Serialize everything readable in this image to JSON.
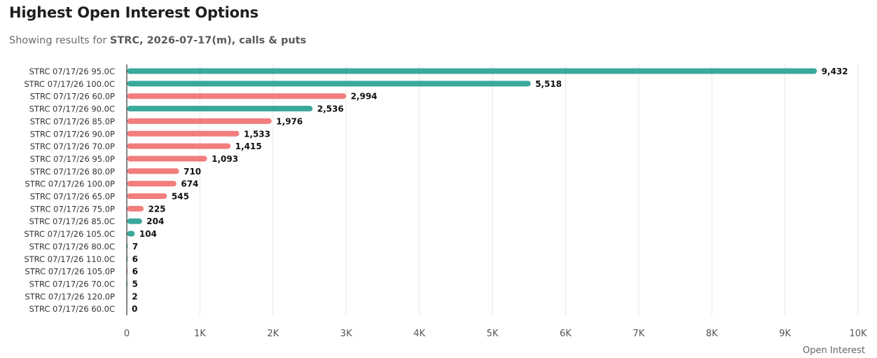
{
  "header": {
    "title": "Highest Open Interest Options",
    "subtitle_prefix": "Showing results for ",
    "subtitle_bold": "STRC, 2026-07-17(m), calls & puts"
  },
  "colors": {
    "call": "#3aa89b",
    "put": "#f27d7d",
    "grid": "#e6e6e6",
    "axis": "#333333"
  },
  "chart_data": {
    "type": "bar",
    "orientation": "horizontal",
    "title": "Highest Open Interest Options",
    "xlabel": "Open Interest",
    "xlim": [
      0,
      10000
    ],
    "xticks": [
      {
        "v": 0,
        "label": "0"
      },
      {
        "v": 1000,
        "label": "1K"
      },
      {
        "v": 2000,
        "label": "2K"
      },
      {
        "v": 3000,
        "label": "3K"
      },
      {
        "v": 4000,
        "label": "4K"
      },
      {
        "v": 5000,
        "label": "5K"
      },
      {
        "v": 6000,
        "label": "6K"
      },
      {
        "v": 7000,
        "label": "7K"
      },
      {
        "v": 8000,
        "label": "8K"
      },
      {
        "v": 9000,
        "label": "9K"
      },
      {
        "v": 10000,
        "label": "10K"
      }
    ],
    "grid": true,
    "bars": [
      {
        "label": "STRC 07/17/26 95.0C",
        "value": 9432,
        "display": "9,432",
        "kind": "call"
      },
      {
        "label": "STRC 07/17/26 100.0C",
        "value": 5518,
        "display": "5,518",
        "kind": "call"
      },
      {
        "label": "STRC 07/17/26 60.0P",
        "value": 2994,
        "display": "2,994",
        "kind": "put"
      },
      {
        "label": "STRC 07/17/26 90.0C",
        "value": 2536,
        "display": "2,536",
        "kind": "call"
      },
      {
        "label": "STRC 07/17/26 85.0P",
        "value": 1976,
        "display": "1,976",
        "kind": "put"
      },
      {
        "label": "STRC 07/17/26 90.0P",
        "value": 1533,
        "display": "1,533",
        "kind": "put"
      },
      {
        "label": "STRC 07/17/26 70.0P",
        "value": 1415,
        "display": "1,415",
        "kind": "put"
      },
      {
        "label": "STRC 07/17/26 95.0P",
        "value": 1093,
        "display": "1,093",
        "kind": "put"
      },
      {
        "label": "STRC 07/17/26 80.0P",
        "value": 710,
        "display": "710",
        "kind": "put"
      },
      {
        "label": "STRC 07/17/26 100.0P",
        "value": 674,
        "display": "674",
        "kind": "put"
      },
      {
        "label": "STRC 07/17/26 65.0P",
        "value": 545,
        "display": "545",
        "kind": "put"
      },
      {
        "label": "STRC 07/17/26 75.0P",
        "value": 225,
        "display": "225",
        "kind": "put"
      },
      {
        "label": "STRC 07/17/26 85.0C",
        "value": 204,
        "display": "204",
        "kind": "call"
      },
      {
        "label": "STRC 07/17/26 105.0C",
        "value": 104,
        "display": "104",
        "kind": "call"
      },
      {
        "label": "STRC 07/17/26 80.0C",
        "value": 7,
        "display": "7",
        "kind": "call"
      },
      {
        "label": "STRC 07/17/26 110.0C",
        "value": 6,
        "display": "6",
        "kind": "call"
      },
      {
        "label": "STRC 07/17/26 105.0P",
        "value": 6,
        "display": "6",
        "kind": "put"
      },
      {
        "label": "STRC 07/17/26 70.0C",
        "value": 5,
        "display": "5",
        "kind": "call"
      },
      {
        "label": "STRC 07/17/26 120.0P",
        "value": 2,
        "display": "2",
        "kind": "put"
      },
      {
        "label": "STRC 07/17/26 60.0C",
        "value": 0,
        "display": "0",
        "kind": "call"
      }
    ]
  }
}
